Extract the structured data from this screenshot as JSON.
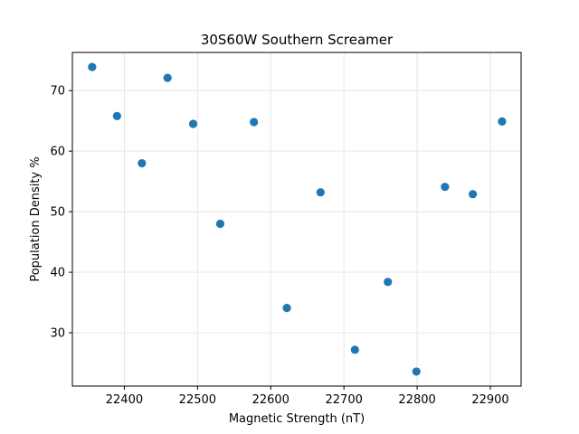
{
  "chart_data": {
    "type": "scatter",
    "title": "30S60W Southern Screamer",
    "xlabel": "Magnetic Strength (nT)",
    "ylabel": "Population Density %",
    "xlim": [
      22329,
      22942
    ],
    "ylim": [
      21.2,
      76.3
    ],
    "xticks": [
      22400,
      22500,
      22600,
      22700,
      22800,
      22900
    ],
    "yticks": [
      30,
      40,
      50,
      60,
      70
    ],
    "grid": true,
    "marker_color": "#1f77b4",
    "points": [
      {
        "x": 22356,
        "y": 73.9
      },
      {
        "x": 22390,
        "y": 65.8
      },
      {
        "x": 22424,
        "y": 58.0
      },
      {
        "x": 22459,
        "y": 72.1
      },
      {
        "x": 22494,
        "y": 64.5
      },
      {
        "x": 22531,
        "y": 48.0
      },
      {
        "x": 22577,
        "y": 64.8
      },
      {
        "x": 22622,
        "y": 34.1
      },
      {
        "x": 22668,
        "y": 53.2
      },
      {
        "x": 22715,
        "y": 27.2
      },
      {
        "x": 22760,
        "y": 38.4
      },
      {
        "x": 22799,
        "y": 23.6
      },
      {
        "x": 22838,
        "y": 54.1
      },
      {
        "x": 22876,
        "y": 52.9
      },
      {
        "x": 22916,
        "y": 64.9
      }
    ]
  }
}
